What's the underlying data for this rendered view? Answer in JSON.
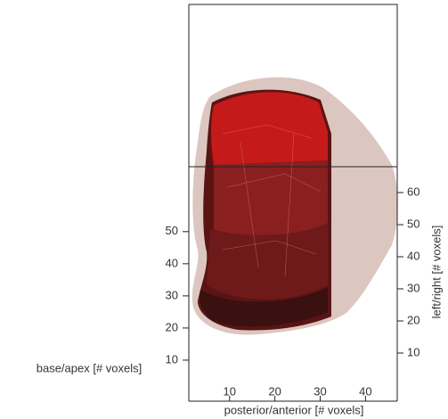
{
  "chart_data": {
    "type": "mesh3d",
    "xlabel": "posterior/anterior [# voxels]",
    "zlabel": "base/apex [# voxels]",
    "ylabel": "left/right [# voxels]",
    "xlim": [
      1,
      47
    ],
    "xticks": [
      10,
      20,
      30,
      40
    ],
    "zlim": [
      0,
      53
    ],
    "zticks": [
      10,
      20,
      30,
      40,
      50
    ],
    "ylim": [
      0,
      67
    ],
    "yticks": [
      10,
      20,
      30,
      40,
      50,
      60
    ]
  }
}
